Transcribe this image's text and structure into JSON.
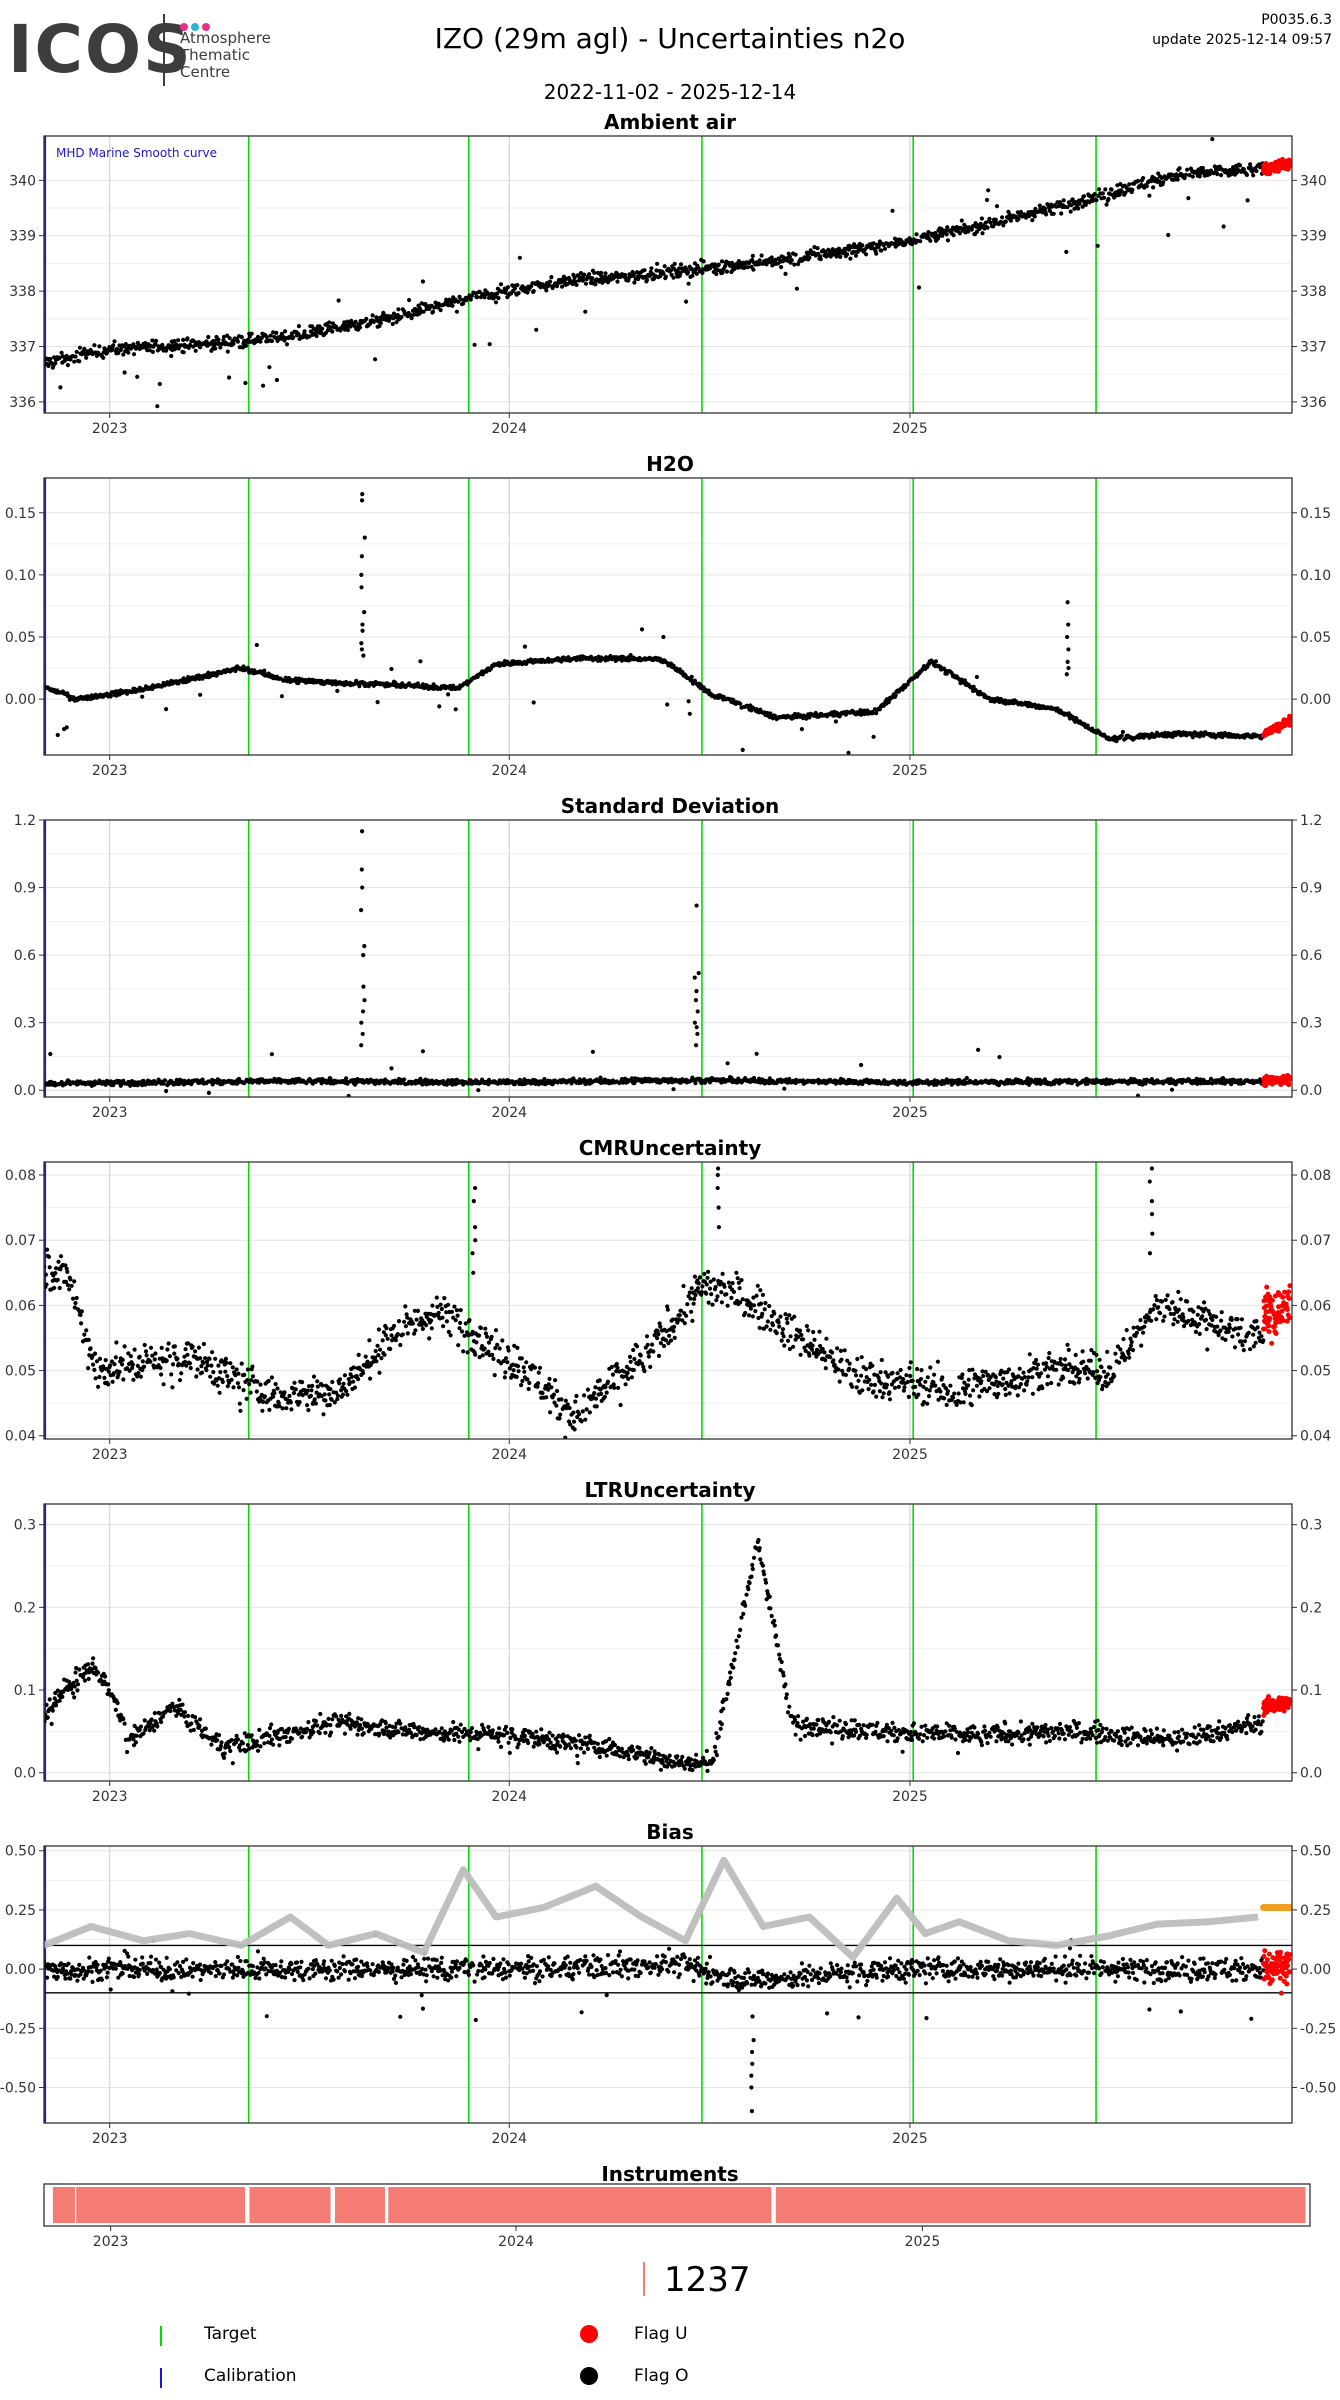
{
  "header": {
    "logo_text": "ICOS",
    "logo_sub_lines": [
      "Atmosphere",
      "Thematic",
      "Centre"
    ],
    "title": "IZO  (29m agl) - Uncertainties n2o",
    "date_range": "2022-11-02 - 2025-12-14",
    "version": "P0035.6.3",
    "update": "update  2025-12-14 09:57"
  },
  "colors": {
    "target": "#00dd00",
    "calibration": "#1a1acc",
    "flag_u": "#ff0000",
    "flag_o": "#000000",
    "smooth": "#bdbdbd",
    "bias_recent": "#f0a020",
    "instrument": "#f47c74",
    "logo_dots": [
      "#e8308a",
      "#2bb3d6",
      "#e8308a"
    ]
  },
  "events": {
    "calibration": [
      "2022-11-03"
    ],
    "target": [
      "2023-05-08",
      "2023-11-25",
      "2024-06-25",
      "2025-01-04",
      "2025-06-20"
    ]
  },
  "chart_data": [
    {
      "id": "ambient",
      "type": "scatter",
      "title": "Ambient air",
      "annotation": "MHD Marine Smooth curve",
      "ylim": [
        335.8,
        340.8
      ],
      "yticks": [
        336,
        337,
        338,
        339,
        340
      ],
      "ytick_labels": [
        "336",
        "337",
        "338",
        "339",
        "340"
      ],
      "xtick_labels": [
        "2023",
        "2024",
        "2025"
      ],
      "series": [
        {
          "kind": "main",
          "noise": 0.12,
          "outlier_amp": 0.9,
          "x": [
            "2022-11-02",
            "2023-01-01",
            "2023-04-01",
            "2023-06-01",
            "2023-09-01",
            "2023-12-01",
            "2024-03-01",
            "2024-06-01",
            "2024-09-01",
            "2024-12-01",
            "2025-03-01",
            "2025-06-01",
            "2025-09-01",
            "2025-11-20"
          ],
          "y": [
            336.7,
            336.95,
            337.05,
            337.15,
            337.45,
            337.9,
            338.2,
            338.35,
            338.55,
            338.8,
            339.15,
            339.6,
            340.1,
            340.2
          ]
        },
        {
          "kind": "flag_u",
          "noise": 0.1,
          "x": [
            "2025-11-20",
            "2025-12-14"
          ],
          "y": [
            340.2,
            340.3
          ]
        }
      ]
    },
    {
      "id": "h2o",
      "type": "scatter",
      "title": "H2O",
      "ylim": [
        -0.045,
        0.178
      ],
      "yticks": [
        0.0,
        0.05,
        0.1,
        0.15
      ],
      "ytick_labels": [
        "0.00",
        "0.05",
        "0.10",
        "0.15"
      ],
      "xtick_labels": [
        "2023",
        "2024",
        "2025"
      ],
      "series": [
        {
          "kind": "main",
          "noise": 0.002,
          "outlier_amp": 0.03,
          "x": [
            "2022-11-02",
            "2022-12-01",
            "2023-02-01",
            "2023-05-01",
            "2023-06-15",
            "2023-09-01",
            "2023-11-15",
            "2023-12-20",
            "2024-03-01",
            "2024-05-20",
            "2024-07-01",
            "2024-09-01",
            "2024-12-01",
            "2025-01-20",
            "2025-03-15",
            "2025-05-15",
            "2025-07-01",
            "2025-09-01",
            "2025-11-20"
          ],
          "y": [
            0.01,
            0.0,
            0.008,
            0.025,
            0.015,
            0.012,
            0.009,
            0.028,
            0.033,
            0.032,
            0.005,
            -0.015,
            -0.01,
            0.03,
            0.0,
            -0.008,
            -0.032,
            -0.028,
            -0.03
          ]
        },
        {
          "kind": "spike",
          "x": "2023-08-20",
          "values": [
            0.165,
            0.16,
            0.13,
            0.115,
            0.1,
            0.09,
            0.07,
            0.06,
            0.055,
            0.045,
            0.04,
            0.035
          ]
        },
        {
          "kind": "spike",
          "x": "2025-05-25",
          "values": [
            0.078,
            0.06,
            0.05,
            0.04,
            0.03,
            0.025,
            0.02
          ]
        },
        {
          "kind": "flag_u",
          "noise": 0.003,
          "x": [
            "2025-11-20",
            "2025-12-14"
          ],
          "y": [
            -0.028,
            -0.017
          ]
        }
      ]
    },
    {
      "id": "sd",
      "type": "scatter",
      "title": "Standard Deviation",
      "ylim": [
        -0.03,
        1.2
      ],
      "yticks": [
        0.0,
        0.3,
        0.6,
        0.9,
        1.2
      ],
      "ytick_labels": [
        "0.0",
        "0.3",
        "0.6",
        "0.9",
        "1.2"
      ],
      "xtick_labels": [
        "2023",
        "2024",
        "2025"
      ],
      "series": [
        {
          "kind": "main",
          "noise": 0.012,
          "outlier_amp": 0.18,
          "x": [
            "2022-11-02",
            "2023-06-01",
            "2024-01-01",
            "2024-06-01",
            "2025-01-01",
            "2025-11-20"
          ],
          "y": [
            0.03,
            0.04,
            0.035,
            0.045,
            0.035,
            0.04
          ]
        },
        {
          "kind": "spike",
          "x": "2023-08-20",
          "values": [
            1.15,
            0.98,
            0.9,
            0.8,
            0.64,
            0.6,
            0.46,
            0.4,
            0.35,
            0.3,
            0.25,
            0.2
          ]
        },
        {
          "kind": "spike",
          "x": "2024-06-20",
          "values": [
            0.82,
            0.52,
            0.5,
            0.44,
            0.4,
            0.35,
            0.3,
            0.28,
            0.25,
            0.2
          ]
        },
        {
          "kind": "flag_u",
          "noise": 0.02,
          "x": [
            "2025-11-20",
            "2025-12-14"
          ],
          "y": [
            0.04,
            0.05
          ]
        }
      ]
    },
    {
      "id": "cmr",
      "type": "scatter",
      "title": "CMRUncertainty",
      "ylim": [
        0.0395,
        0.082
      ],
      "yticks": [
        0.04,
        0.05,
        0.06,
        0.07,
        0.08
      ],
      "ytick_labels": [
        "0.04",
        "0.05",
        "0.06",
        "0.07",
        "0.08"
      ],
      "xtick_labels": [
        "2023",
        "2024",
        "2025"
      ],
      "series": [
        {
          "kind": "main",
          "noise": 0.003,
          "outlier_amp": 0.004,
          "x": [
            "2022-11-02",
            "2022-11-25",
            "2022-12-20",
            "2023-03-15",
            "2023-06-01",
            "2023-08-01",
            "2023-09-20",
            "2023-11-01",
            "2024-01-15",
            "2024-03-01",
            "2024-05-15",
            "2024-06-25",
            "2024-07-25",
            "2024-09-15",
            "2024-11-15",
            "2025-02-15",
            "2025-05-01",
            "2025-07-01",
            "2025-08-15",
            "2025-11-20"
          ],
          "y": [
            0.066,
            0.064,
            0.05,
            0.052,
            0.046,
            0.047,
            0.056,
            0.059,
            0.05,
            0.043,
            0.054,
            0.063,
            0.062,
            0.056,
            0.049,
            0.047,
            0.05,
            0.05,
            0.06,
            0.055
          ]
        },
        {
          "kind": "spike",
          "x": "2023-11-30",
          "values": [
            0.078,
            0.076,
            0.072,
            0.07,
            0.068,
            0.065
          ]
        },
        {
          "kind": "spike",
          "x": "2024-07-10",
          "values": [
            0.081,
            0.08,
            0.078,
            0.075,
            0.072
          ]
        },
        {
          "kind": "spike",
          "x": "2025-08-10",
          "values": [
            0.081,
            0.079,
            0.076,
            0.074,
            0.071,
            0.068
          ]
        },
        {
          "kind": "flag_u",
          "noise": 0.004,
          "x": [
            "2025-11-20",
            "2025-12-14"
          ],
          "y": [
            0.058,
            0.06
          ]
        }
      ]
    },
    {
      "id": "ltr",
      "type": "scatter",
      "title": "LTRUncertainty",
      "ylim": [
        -0.01,
        0.325
      ],
      "yticks": [
        0.0,
        0.1,
        0.2,
        0.3
      ],
      "ytick_labels": [
        "0.0",
        "0.1",
        "0.2",
        "0.3"
      ],
      "xtick_labels": [
        "2023",
        "2024",
        "2025"
      ],
      "series": [
        {
          "kind": "main",
          "noise": 0.012,
          "outlier_amp": 0.02,
          "x": [
            "2022-11-02",
            "2022-11-20",
            "2022-12-20",
            "2023-01-20",
            "2023-03-01",
            "2023-04-15",
            "2023-06-01",
            "2023-08-01",
            "2023-10-01",
            "2024-01-01",
            "2024-04-01",
            "2024-06-15",
            "2024-07-05",
            "2024-08-15",
            "2024-09-15",
            "2024-12-01",
            "2025-03-01",
            "2025-06-01",
            "2025-09-01",
            "2025-11-20"
          ],
          "y": [
            0.07,
            0.1,
            0.13,
            0.04,
            0.08,
            0.03,
            0.045,
            0.06,
            0.05,
            0.045,
            0.03,
            0.01,
            0.015,
            0.28,
            0.06,
            0.05,
            0.045,
            0.05,
            0.04,
            0.06
          ]
        },
        {
          "kind": "flag_u",
          "noise": 0.01,
          "x": [
            "2025-11-20",
            "2025-12-14"
          ],
          "y": [
            0.08,
            0.085
          ]
        }
      ]
    },
    {
      "id": "bias",
      "type": "scatter",
      "title": "Bias",
      "ylim": [
        -0.65,
        0.52
      ],
      "yticks": [
        -0.5,
        -0.25,
        0.0,
        0.25,
        0.5
      ],
      "ytick_labels": [
        "-0.50",
        "-0.25",
        "0.00",
        "0.25",
        "0.50"
      ],
      "xtick_labels": [
        "2023",
        "2024",
        "2025"
      ],
      "hlines": [
        0.1,
        -0.1
      ],
      "series": [
        {
          "kind": "main",
          "noise": 0.05,
          "outlier_amp": 0.18,
          "x": [
            "2022-11-02",
            "2023-06-01",
            "2024-01-01",
            "2024-06-01",
            "2024-08-01",
            "2025-01-01",
            "2025-11-20"
          ],
          "y": [
            0.0,
            0.0,
            0.0,
            0.02,
            -0.05,
            0.0,
            0.0
          ]
        },
        {
          "kind": "spike",
          "x": "2024-08-10",
          "values": [
            -0.2,
            -0.3,
            -0.4,
            -0.5,
            -0.6,
            -0.45,
            -0.35
          ]
        },
        {
          "kind": "flag_u",
          "noise": 0.08,
          "x": [
            "2025-11-20",
            "2025-12-14"
          ],
          "y": [
            0.0,
            0.0
          ]
        },
        {
          "kind": "smooth",
          "x": [
            "2022-11-02",
            "2022-12-15",
            "2023-02-01",
            "2023-03-15",
            "2023-05-01",
            "2023-06-15",
            "2023-07-20",
            "2023-09-01",
            "2023-10-15",
            "2023-11-20",
            "2023-12-20",
            "2024-02-01",
            "2024-03-20",
            "2024-05-01",
            "2024-06-10",
            "2024-07-15",
            "2024-08-20",
            "2024-10-01",
            "2024-11-10",
            "2024-12-20",
            "2025-01-15",
            "2025-02-15",
            "2025-04-01",
            "2025-05-15",
            "2025-07-01",
            "2025-08-15",
            "2025-10-01",
            "2025-11-15"
          ],
          "y": [
            0.1,
            0.18,
            0.12,
            0.15,
            0.1,
            0.22,
            0.1,
            0.15,
            0.07,
            0.42,
            0.22,
            0.26,
            0.35,
            0.22,
            0.12,
            0.46,
            0.18,
            0.22,
            0.05,
            0.3,
            0.15,
            0.2,
            0.12,
            0.1,
            0.14,
            0.19,
            0.2,
            0.22
          ]
        },
        {
          "kind": "recent",
          "x": [
            "2025-11-20",
            "2025-12-14"
          ],
          "y": [
            0.26,
            0.26
          ]
        }
      ]
    }
  ],
  "instruments": {
    "title": "Instruments",
    "xtick_labels": [
      "2023",
      "2024",
      "2025"
    ],
    "periods": [
      [
        "2022-11-10",
        "2022-11-30"
      ],
      [
        "2022-12-01",
        "2023-05-02"
      ],
      [
        "2023-05-06",
        "2023-07-18"
      ],
      [
        "2023-07-22",
        "2023-09-05"
      ],
      [
        "2023-09-08",
        "2024-08-18"
      ],
      [
        "2024-08-22",
        "2025-12-12"
      ]
    ]
  },
  "count": "1237",
  "legend": {
    "target": "Target",
    "calibration": "Calibration",
    "flag_u": "Flag U",
    "flag_o": "Flag O"
  }
}
